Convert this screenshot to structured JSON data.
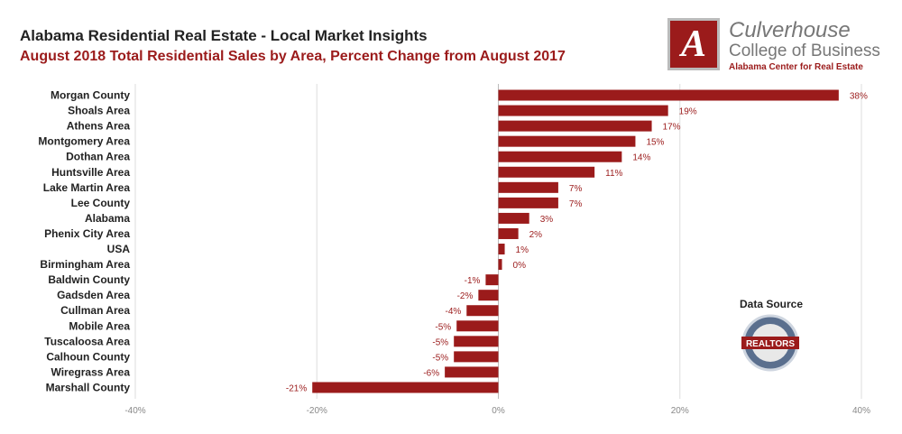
{
  "title": "Alabama Residential Real Estate - Local Market Insights",
  "subtitle": "August 2018 Total Residential Sales by Area, Percent Change from August 2017",
  "logo": {
    "line1": "Culverhouse",
    "line2": "College of Business",
    "line3": "Alabama Center for Real Estate",
    "mark": "A"
  },
  "data_source": {
    "label": "Data Source",
    "badge": "REALTORS"
  },
  "colors": {
    "bar": "#9b1b1b",
    "label": "#9b1b1b",
    "grid": "#dddddd"
  },
  "chart_data": {
    "type": "bar",
    "orientation": "horizontal",
    "title": "August 2018 Total Residential Sales by Area, Percent Change from August 2017",
    "categories": [
      "Morgan County",
      "Shoals Area",
      "Athens Area",
      "Montgomery Area",
      "Dothan Area",
      "Huntsville Area",
      "Lake Martin Area",
      "Lee County",
      "Alabama",
      "Phenix City Area",
      "USA",
      "Birmingham Area",
      "Baldwin County",
      "Gadsden Area",
      "Cullman Area",
      "Mobile Area",
      "Tuscaloosa Area",
      "Calhoun County",
      "Wiregrass Area",
      "Marshall County"
    ],
    "values": [
      37.5,
      18.7,
      16.9,
      15.1,
      13.6,
      10.6,
      6.6,
      6.6,
      3.4,
      2.2,
      0.7,
      0.4,
      -1.4,
      -2.2,
      -3.5,
      -4.6,
      -4.9,
      -4.9,
      -5.9,
      -20.5
    ],
    "data_labels": [
      "38%",
      "19%",
      "17%",
      "15%",
      "14%",
      "11%",
      "7%",
      "7%",
      "3%",
      "2%",
      "1%",
      "0%",
      "-1%",
      "-2%",
      "-4%",
      "-5%",
      "-5%",
      "-5%",
      "-6%",
      "-21%"
    ],
    "xlim": [
      -40,
      40
    ],
    "xticks": [
      -40,
      -20,
      0,
      20,
      40
    ],
    "xtick_labels": [
      "-40%",
      "-20%",
      "0%",
      "20%",
      "40%"
    ],
    "grid": true,
    "xlabel": "",
    "ylabel": ""
  }
}
